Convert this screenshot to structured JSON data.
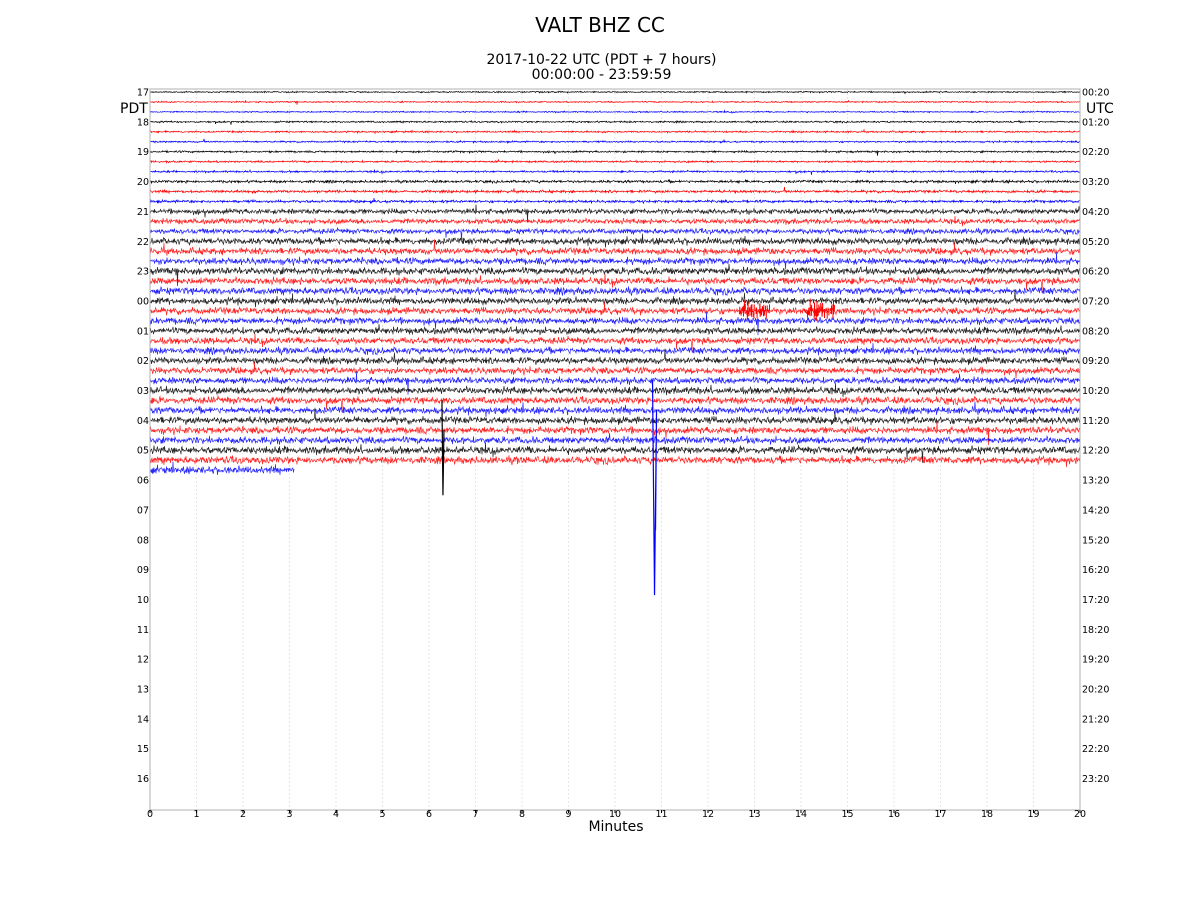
{
  "header": {
    "title": "VALT BHZ CC",
    "subtitle_line1": "2017-10-22 UTC (PDT + 7 hours)",
    "subtitle_line2": "00:00:00 - 23:59:59"
  },
  "chart_data": {
    "type": "line",
    "title": "VALT BHZ CC",
    "subtitle": [
      "2017-10-22 UTC (PDT + 7 hours)",
      "00:00:00 - 23:59:59"
    ],
    "xlabel": "Minutes",
    "left_axis_label": "PDT",
    "right_axis_label": "UTC",
    "xlim": [
      0,
      20
    ],
    "x_ticks": [
      "0",
      "1",
      "2",
      "3",
      "4",
      "5",
      "6",
      "7",
      "8",
      "9",
      "10",
      "11",
      "12",
      "13",
      "14",
      "15",
      "16",
      "17",
      "18",
      "19",
      "20"
    ],
    "left_row_labels": [
      "17",
      "18",
      "19",
      "20",
      "21",
      "22",
      "23",
      "00",
      "01",
      "02",
      "03",
      "04",
      "05",
      "06",
      "07",
      "08",
      "09",
      "10",
      "11",
      "12",
      "13",
      "14",
      "15",
      "16"
    ],
    "right_row_labels": [
      "00:20",
      "01:20",
      "02:20",
      "03:20",
      "04:20",
      "05:20",
      "06:20",
      "07:20",
      "08:20",
      "09:20",
      "10:20",
      "11:20",
      "12:20",
      "13:20",
      "14:20",
      "15:20",
      "16:20",
      "17:20",
      "18:20",
      "19:20",
      "20:20",
      "21:20",
      "22:20",
      "23:20"
    ],
    "traces_per_hour": 3,
    "trace_colors": [
      "#000000",
      "#ff0000",
      "#0000ff"
    ],
    "data_end_minutes_last_trace": 3.1,
    "series": [
      {
        "hour": "00",
        "noise_level": 0.35
      },
      {
        "hour": "01",
        "noise_level": 0.45
      },
      {
        "hour": "02",
        "noise_level": 0.5
      },
      {
        "hour": "03",
        "noise_level": 0.7
      },
      {
        "hour": "04",
        "noise_level": 1.4
      },
      {
        "hour": "05",
        "noise_level": 1.8
      },
      {
        "hour": "06",
        "noise_level": 1.9
      },
      {
        "hour": "07",
        "noise_level": 1.8
      },
      {
        "hour": "08",
        "noise_level": 1.8
      },
      {
        "hour": "09",
        "noise_level": 1.8
      },
      {
        "hour": "10",
        "noise_level": 1.9
      },
      {
        "hour": "11",
        "noise_level": 1.9
      },
      {
        "hour": "12",
        "noise_level": 2.0
      }
    ],
    "annotations": [
      {
        "minute": 10.85,
        "hour": "12",
        "color": "#0000ff",
        "note": "large spike"
      },
      {
        "minute": 6.3,
        "hour": "12",
        "color": "#000000",
        "note": "spike"
      },
      {
        "minute": 13.0,
        "hour": "07",
        "color": "#ff0000",
        "note": "burst"
      },
      {
        "minute": 14.4,
        "hour": "07",
        "color": "#ff0000",
        "note": "burst"
      }
    ],
    "grid": "vertical-dotted"
  }
}
